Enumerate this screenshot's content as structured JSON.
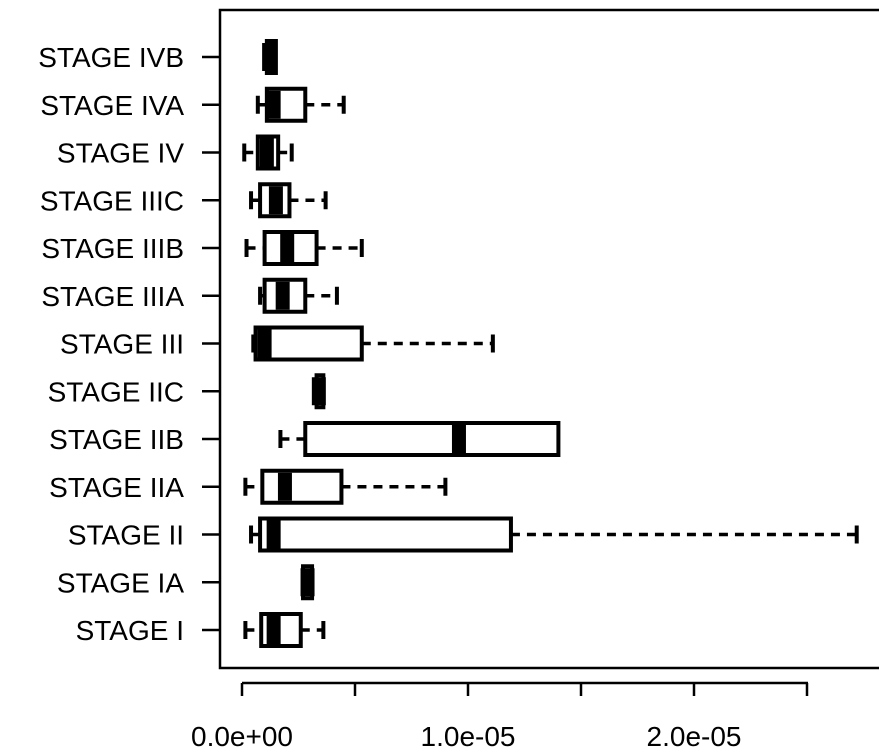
{
  "chart_data": {
    "type": "boxplot",
    "orientation": "horizontal",
    "x_tick_labels": [
      "0.0e+00",
      "1.0e-05",
      "2.0e-05"
    ],
    "x_ticks": [
      0,
      5e-06,
      1e-05,
      1.5e-05,
      2e-05,
      2.5e-05
    ],
    "xlim": [
      -1e-06,
      2.85e-05
    ],
    "categories": [
      "STAGE I",
      "STAGE IA",
      "STAGE II",
      "STAGE IIA",
      "STAGE IIB",
      "STAGE IIC",
      "STAGE III",
      "STAGE IIIA",
      "STAGE IIIB",
      "STAGE IIIC",
      "STAGE IV",
      "STAGE IVA",
      "STAGE IVB"
    ],
    "boxes": [
      {
        "category": "STAGE I",
        "min": 1.5e-07,
        "q1": 8.5e-07,
        "median": 1.4e-06,
        "q3": 2.6e-06,
        "max": 3.6e-06
      },
      {
        "category": "STAGE IA",
        "min": 2.7e-06,
        "q1": 2.7e-06,
        "median": 2.9e-06,
        "q3": 3.1e-06,
        "max": 3.1e-06
      },
      {
        "category": "STAGE II",
        "min": 4e-07,
        "q1": 8e-07,
        "median": 1.4e-06,
        "q3": 1.19e-05,
        "max": 2.72e-05
      },
      {
        "category": "STAGE IIA",
        "min": 1.5e-07,
        "q1": 9e-07,
        "median": 1.9e-06,
        "q3": 4.4e-06,
        "max": 9e-06
      },
      {
        "category": "STAGE IIB",
        "min": 1.7e-06,
        "q1": 2.8e-06,
        "median": 9.6e-06,
        "q3": 1.4e-05,
        "max": 1.4e-05
      },
      {
        "category": "STAGE IIC",
        "min": 3.3e-06,
        "q1": 3.3e-06,
        "median": 3.4e-06,
        "q3": 3.6e-06,
        "max": 3.6e-06
      },
      {
        "category": "STAGE III",
        "min": 5e-07,
        "q1": 6e-07,
        "median": 1e-06,
        "q3": 5.3e-06,
        "max": 1.11e-05
      },
      {
        "category": "STAGE IIIA",
        "min": 8e-07,
        "q1": 1e-06,
        "median": 1.8e-06,
        "q3": 2.8e-06,
        "max": 4.2e-06
      },
      {
        "category": "STAGE IIIB",
        "min": 2e-07,
        "q1": 1e-06,
        "median": 2e-06,
        "q3": 3.3e-06,
        "max": 5.3e-06
      },
      {
        "category": "STAGE IIIC",
        "min": 4e-07,
        "q1": 8e-07,
        "median": 1.5e-06,
        "q3": 2.1e-06,
        "max": 3.7e-06
      },
      {
        "category": "STAGE IV",
        "min": 1e-07,
        "q1": 7e-07,
        "median": 1.1e-06,
        "q3": 1.6e-06,
        "max": 2.2e-06
      },
      {
        "category": "STAGE IVA",
        "min": 7e-07,
        "q1": 1.1e-06,
        "median": 1.4e-06,
        "q3": 2.8e-06,
        "max": 4.5e-06
      },
      {
        "category": "STAGE IVB",
        "min": 1.1e-06,
        "q1": 1.1e-06,
        "median": 1.2e-06,
        "q3": 1.5e-06,
        "max": 1.5e-06
      }
    ],
    "grid": false,
    "legend": "none"
  }
}
